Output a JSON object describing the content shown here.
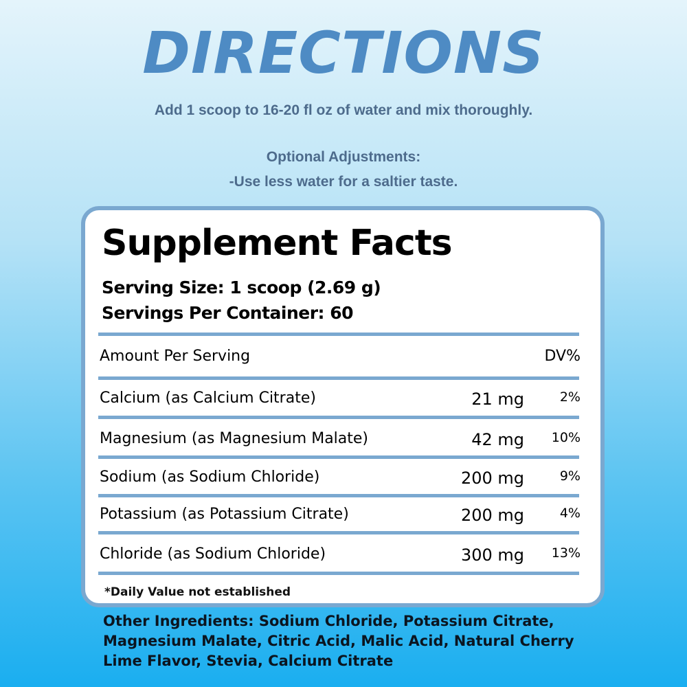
{
  "heading": "DIRECTIONS",
  "directions": "Add 1 scoop to 16-20 fl oz of water and mix thoroughly.",
  "optional_title": "Optional Adjustments:",
  "optional_text": "-Use less water for a saltier taste.",
  "facts": {
    "title": "Supplement Facts",
    "serving_size": "Serving Size: 1 scoop (2.69 g)",
    "servings_per_container": "Servings Per Container: 60",
    "amount_header": "Amount Per Serving",
    "dv_header": "DV%",
    "rows": [
      {
        "name": "Calcium (as Calcium Citrate)",
        "amount": "21 mg",
        "dv": "2%"
      },
      {
        "name": "Magnesium (as Magnesium Malate)",
        "amount": "42 mg",
        "dv": "10%"
      },
      {
        "name": "Sodium (as Sodium Chloride)",
        "amount": "200 mg",
        "dv": "9%"
      },
      {
        "name": "Potassium (as Potassium Citrate)",
        "amount": "200 mg",
        "dv": "4%"
      },
      {
        "name": "Chloride (as Sodium Chloride)",
        "amount": "300 mg",
        "dv": "13%"
      }
    ],
    "footnote": "*Daily Value not established"
  },
  "other_ingredients": "Other Ingredients: Sodium Chloride, Potassium Citrate, Magnesium Malate, Citric Acid, Malic Acid, Natural Cherry Lime Flavor, Stevia, Calcium Citrate",
  "colors": {
    "heading": "#4e8bc4",
    "rule": "#7aa8d0",
    "background_bottom": "#1aaef0"
  }
}
